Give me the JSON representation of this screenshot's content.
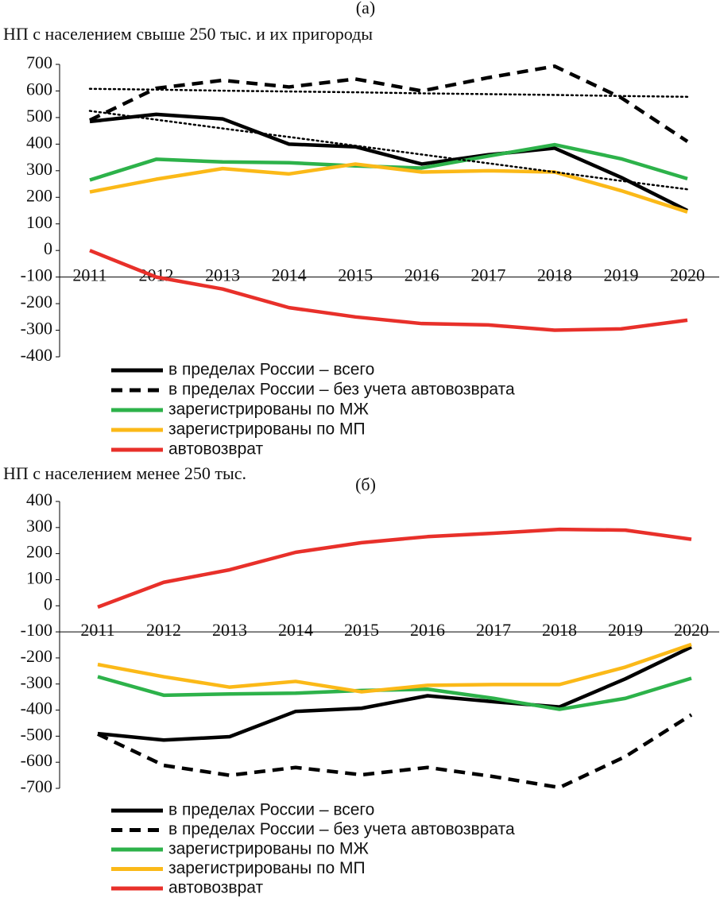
{
  "chart_data": [
    {
      "type": "line",
      "title": "(a)",
      "subtitle": "НП с населением свыше 250 тыс. и их пригороды",
      "categories": [
        "2011",
        "2012",
        "2013",
        "2014",
        "2015",
        "2016",
        "2017",
        "2018",
        "2019",
        "2020"
      ],
      "ylim": [
        -400,
        700
      ],
      "yticks": [
        -400,
        -300,
        -200,
        -100,
        0,
        100,
        200,
        300,
        400,
        500,
        600,
        700
      ],
      "x_axis_crossing": -100,
      "series": [
        {
          "name": "в пределах России – всего",
          "color": "#000000",
          "dash": "solid",
          "values": [
            485,
            512,
            495,
            400,
            390,
            325,
            360,
            385,
            275,
            150
          ]
        },
        {
          "name": "в пределах России – без учета автовозврата",
          "color": "#000000",
          "dash": "dashed",
          "values": [
            490,
            610,
            640,
            615,
            645,
            600,
            650,
            693,
            575,
            410
          ]
        },
        {
          "name": "зарегистрированы по МЖ",
          "color": "#2db24a",
          "dash": "solid",
          "values": [
            265,
            343,
            333,
            330,
            318,
            310,
            355,
            398,
            345,
            270
          ]
        },
        {
          "name": "зарегистрированы по МП",
          "color": "#fbb918",
          "dash": "solid",
          "values": [
            220,
            268,
            308,
            288,
            325,
            295,
            300,
            295,
            225,
            145
          ]
        },
        {
          "name": "автовозврат",
          "color": "#e8302a",
          "dash": "solid",
          "values": [
            0,
            -100,
            -145,
            -215,
            -250,
            -275,
            -280,
            -300,
            -295,
            -262
          ]
        },
        {
          "color": "#000000",
          "dash": "dotted",
          "values": [
            608,
            605,
            601,
            598,
            595,
            591,
            588,
            585,
            581,
            578
          ]
        },
        {
          "color": "#000000",
          "dash": "dotted",
          "values": [
            525,
            492,
            459,
            427,
            394,
            361,
            328,
            295,
            262,
            230
          ]
        }
      ]
    },
    {
      "type": "line",
      "title": "(б)",
      "subtitle": "НП с населением менее 250 тыс.",
      "categories": [
        "2011",
        "2012",
        "2013",
        "2014",
        "2015",
        "2016",
        "2017",
        "2018",
        "2019",
        "2020"
      ],
      "ylim": [
        -700,
        400
      ],
      "yticks": [
        -700,
        -600,
        -500,
        -400,
        -300,
        -200,
        -100,
        0,
        100,
        200,
        300,
        400
      ],
      "x_axis_crossing": -100,
      "series": [
        {
          "name": "в пределах России – всего",
          "color": "#000000",
          "dash": "solid",
          "values": [
            -490,
            -515,
            -502,
            -405,
            -393,
            -345,
            -368,
            -388,
            -280,
            -158
          ]
        },
        {
          "name": "в пределах России – без учета автовозврата",
          "color": "#000000",
          "dash": "dashed",
          "values": [
            -492,
            -612,
            -650,
            -620,
            -648,
            -620,
            -655,
            -697,
            -578,
            -418
          ]
        },
        {
          "name": "зарегистрированы по МЖ",
          "color": "#2db24a",
          "dash": "solid",
          "values": [
            -272,
            -343,
            -338,
            -335,
            -325,
            -320,
            -355,
            -397,
            -355,
            -278
          ]
        },
        {
          "name": "зарегистрированы по МП",
          "color": "#fbb918",
          "dash": "solid",
          "values": [
            -225,
            -272,
            -312,
            -290,
            -330,
            -305,
            -302,
            -302,
            -235,
            -148
          ]
        },
        {
          "name": "автовозврат",
          "color": "#e8302a",
          "dash": "solid",
          "values": [
            -5,
            90,
            138,
            205,
            242,
            265,
            278,
            293,
            290,
            255
          ]
        }
      ]
    }
  ]
}
